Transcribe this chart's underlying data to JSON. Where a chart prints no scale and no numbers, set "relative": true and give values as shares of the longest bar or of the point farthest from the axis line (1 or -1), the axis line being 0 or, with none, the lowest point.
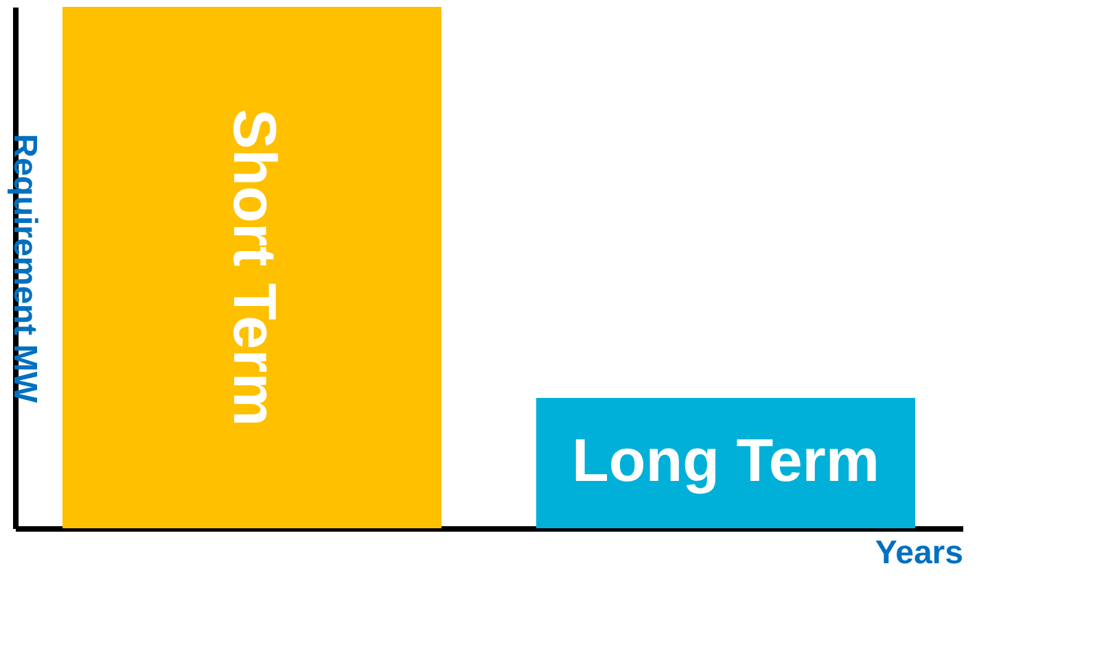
{
  "chart_data": {
    "type": "bar",
    "relative": true,
    "categories": [
      "Short Term",
      "Long Term"
    ],
    "values": [
      1,
      0.25
    ],
    "colors": [
      "#ffc000",
      "#00b0d8"
    ],
    "xlabel": "Years",
    "ylabel": "Requirement MW",
    "grid": false
  }
}
